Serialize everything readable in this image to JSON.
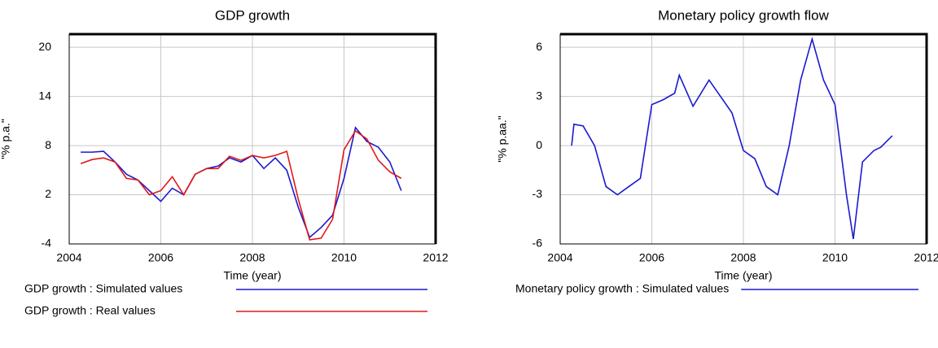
{
  "chart_data": [
    {
      "type": "line",
      "title": "GDP growth",
      "xlabel": "Time (year)",
      "ylabel": "\"% p.a.\"",
      "x": [
        2004.25,
        2004.5,
        2004.75,
        2005.0,
        2005.25,
        2005.5,
        2005.75,
        2006.0,
        2006.25,
        2006.5,
        2006.75,
        2007.0,
        2007.25,
        2007.5,
        2007.75,
        2008.0,
        2008.25,
        2008.5,
        2008.75,
        2009.0,
        2009.25,
        2009.5,
        2009.75,
        2010.0,
        2010.25,
        2010.5,
        2010.75,
        2011.0,
        2011.25
      ],
      "series": [
        {
          "name": "GDP growth : Simulated values",
          "color": "#1a1ad0",
          "values": [
            7.2,
            7.2,
            7.3,
            6.0,
            4.5,
            3.8,
            2.5,
            1.2,
            2.8,
            2.0,
            4.5,
            5.2,
            5.5,
            6.5,
            6.0,
            6.8,
            5.2,
            6.5,
            5.0,
            0.5,
            -3.2,
            -2.0,
            -0.5,
            4.0,
            10.2,
            8.5,
            7.8,
            6.0,
            2.5
          ]
        },
        {
          "name": "GDP growth : Real values",
          "color": "#e01818",
          "values": [
            5.8,
            6.3,
            6.5,
            6.0,
            4.0,
            3.8,
            2.0,
            2.5,
            4.2,
            2.0,
            4.5,
            5.2,
            5.2,
            6.7,
            6.2,
            6.8,
            6.5,
            6.8,
            7.3,
            1.5,
            -3.5,
            -3.3,
            -1.0,
            7.5,
            9.8,
            8.8,
            6.2,
            4.8,
            4.0
          ]
        }
      ],
      "xlim": [
        2004,
        2012
      ],
      "xticks": [
        2004,
        2006,
        2008,
        2010,
        2012
      ],
      "ylim": [
        -4,
        21.6
      ],
      "yticks": [
        -4,
        2,
        8,
        14,
        20
      ],
      "grid": true
    },
    {
      "type": "line",
      "title": "Monetary policy growth flow",
      "xlabel": "Time (year)",
      "ylabel": "\"% p.aa.\"",
      "x": [
        2004.25,
        2004.3,
        2004.5,
        2004.75,
        2005.0,
        2005.25,
        2005.5,
        2005.75,
        2006.0,
        2006.25,
        2006.5,
        2006.6,
        2006.9,
        2007.25,
        2007.5,
        2007.75,
        2008.0,
        2008.25,
        2008.5,
        2008.75,
        2009.0,
        2009.25,
        2009.5,
        2009.75,
        2010.0,
        2010.25,
        2010.4,
        2010.6,
        2010.85,
        2011.0,
        2011.25
      ],
      "series": [
        {
          "name": "Monetary policy growth : Simulated values",
          "color": "#1a1ad0",
          "values": [
            0,
            1.3,
            1.2,
            0,
            -2.5,
            -3.0,
            -2.5,
            -2.0,
            2.5,
            2.8,
            3.2,
            4.3,
            2.4,
            4.0,
            3.0,
            2.0,
            -0.3,
            -0.8,
            -2.5,
            -3.0,
            0,
            4.0,
            6.5,
            4.0,
            2.5,
            -3.0,
            -5.7,
            -1.0,
            -0.3,
            -0.1,
            0.6
          ]
        }
      ],
      "xlim": [
        2004,
        2012
      ],
      "xticks": [
        2004,
        2006,
        2008,
        2010,
        2012
      ],
      "ylim": [
        -6,
        6.8
      ],
      "yticks": [
        -6,
        -3,
        0,
        3,
        6
      ],
      "grid": true
    }
  ]
}
